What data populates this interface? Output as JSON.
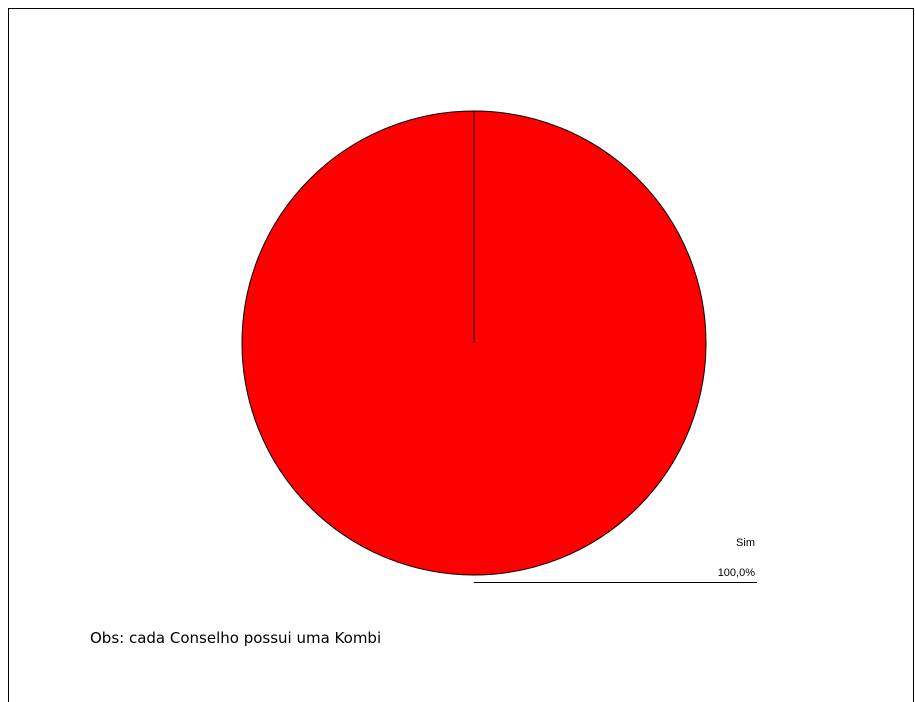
{
  "chart_data": {
    "type": "pie",
    "slices": [
      {
        "label": "Sim",
        "value": 100.0,
        "percent_label": "100,0%",
        "color": "#ff0000"
      }
    ]
  },
  "note": "Obs: cada Conselho possui uma Kombi",
  "colors": {
    "slice_fill": "#ff0000",
    "outline": "#000000",
    "background": "#ffffff"
  }
}
